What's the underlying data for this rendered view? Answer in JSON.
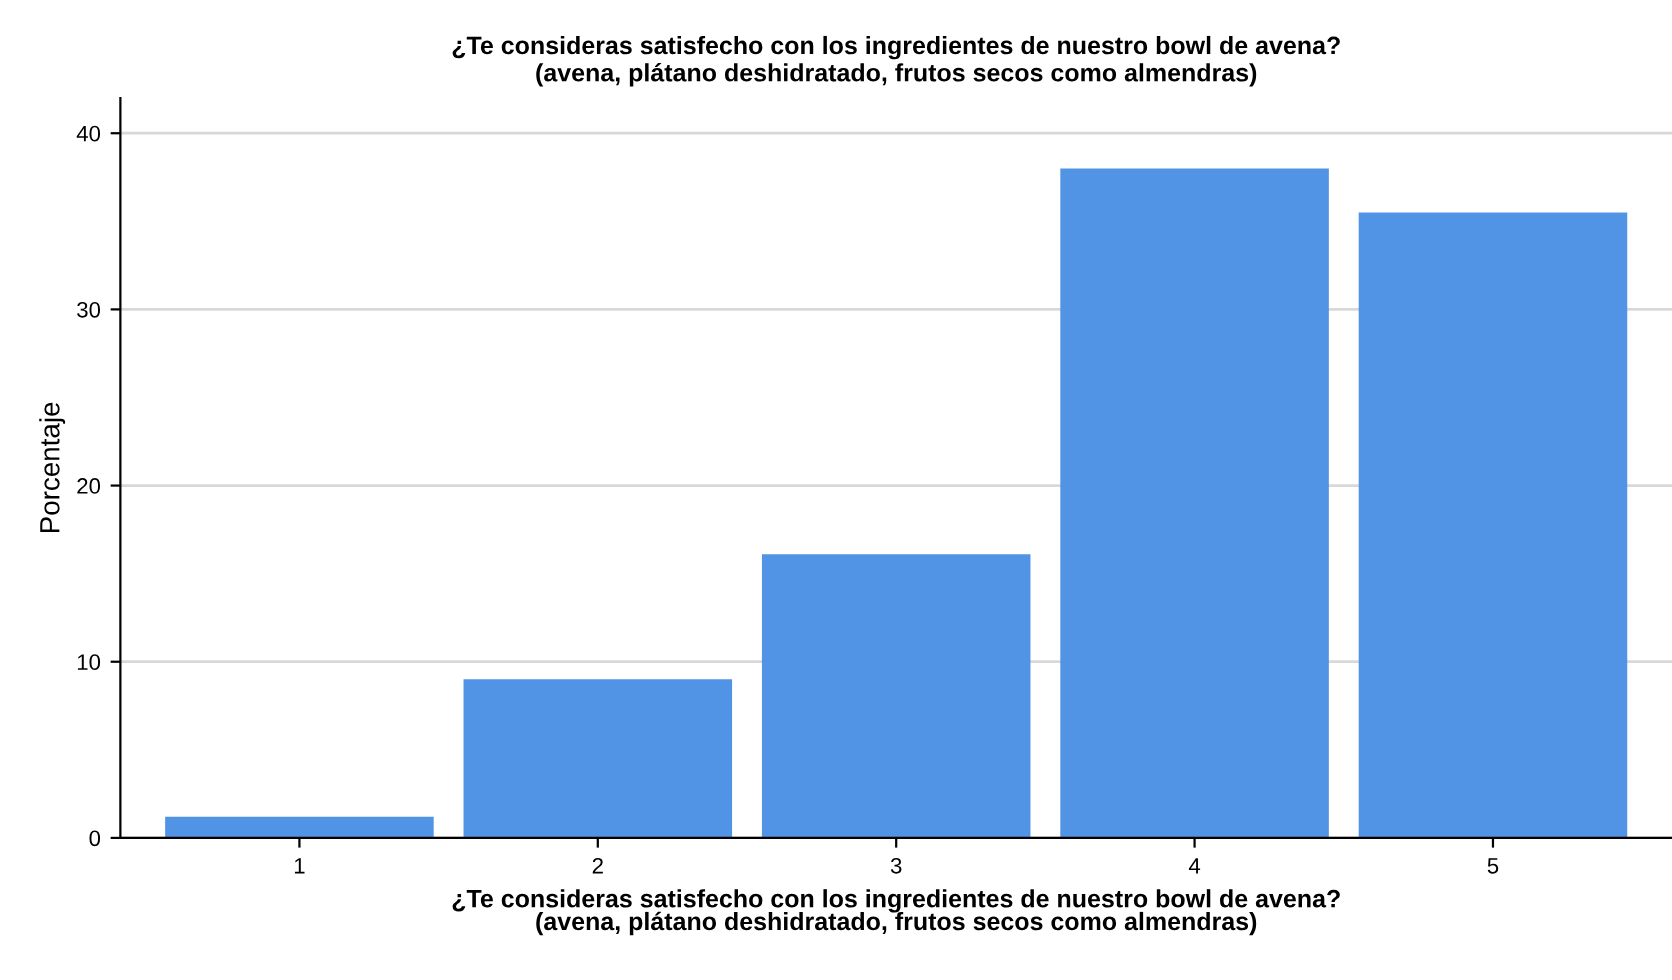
{
  "chart_data": {
    "type": "bar",
    "title": "¿Te consideras satisfecho con los ingredientes de nuestro bowl de avena?\n(avena, plátano deshidratado, frutos secos como almendras)",
    "xlabel": "¿Te consideras satisfecho con los ingredientes de nuestro bowl de avena?\n(avena, plátano deshidratado, frutos secos como almendras)",
    "ylabel": "Porcentaje",
    "categories": [
      "1",
      "2",
      "3",
      "4",
      "5"
    ],
    "values": [
      1.2,
      9.0,
      16.1,
      38.0,
      35.5
    ],
    "color": "#5193e5",
    "ylim": [
      0,
      42
    ],
    "yticks": [
      0,
      10,
      20,
      30,
      40
    ],
    "grid": "y"
  }
}
